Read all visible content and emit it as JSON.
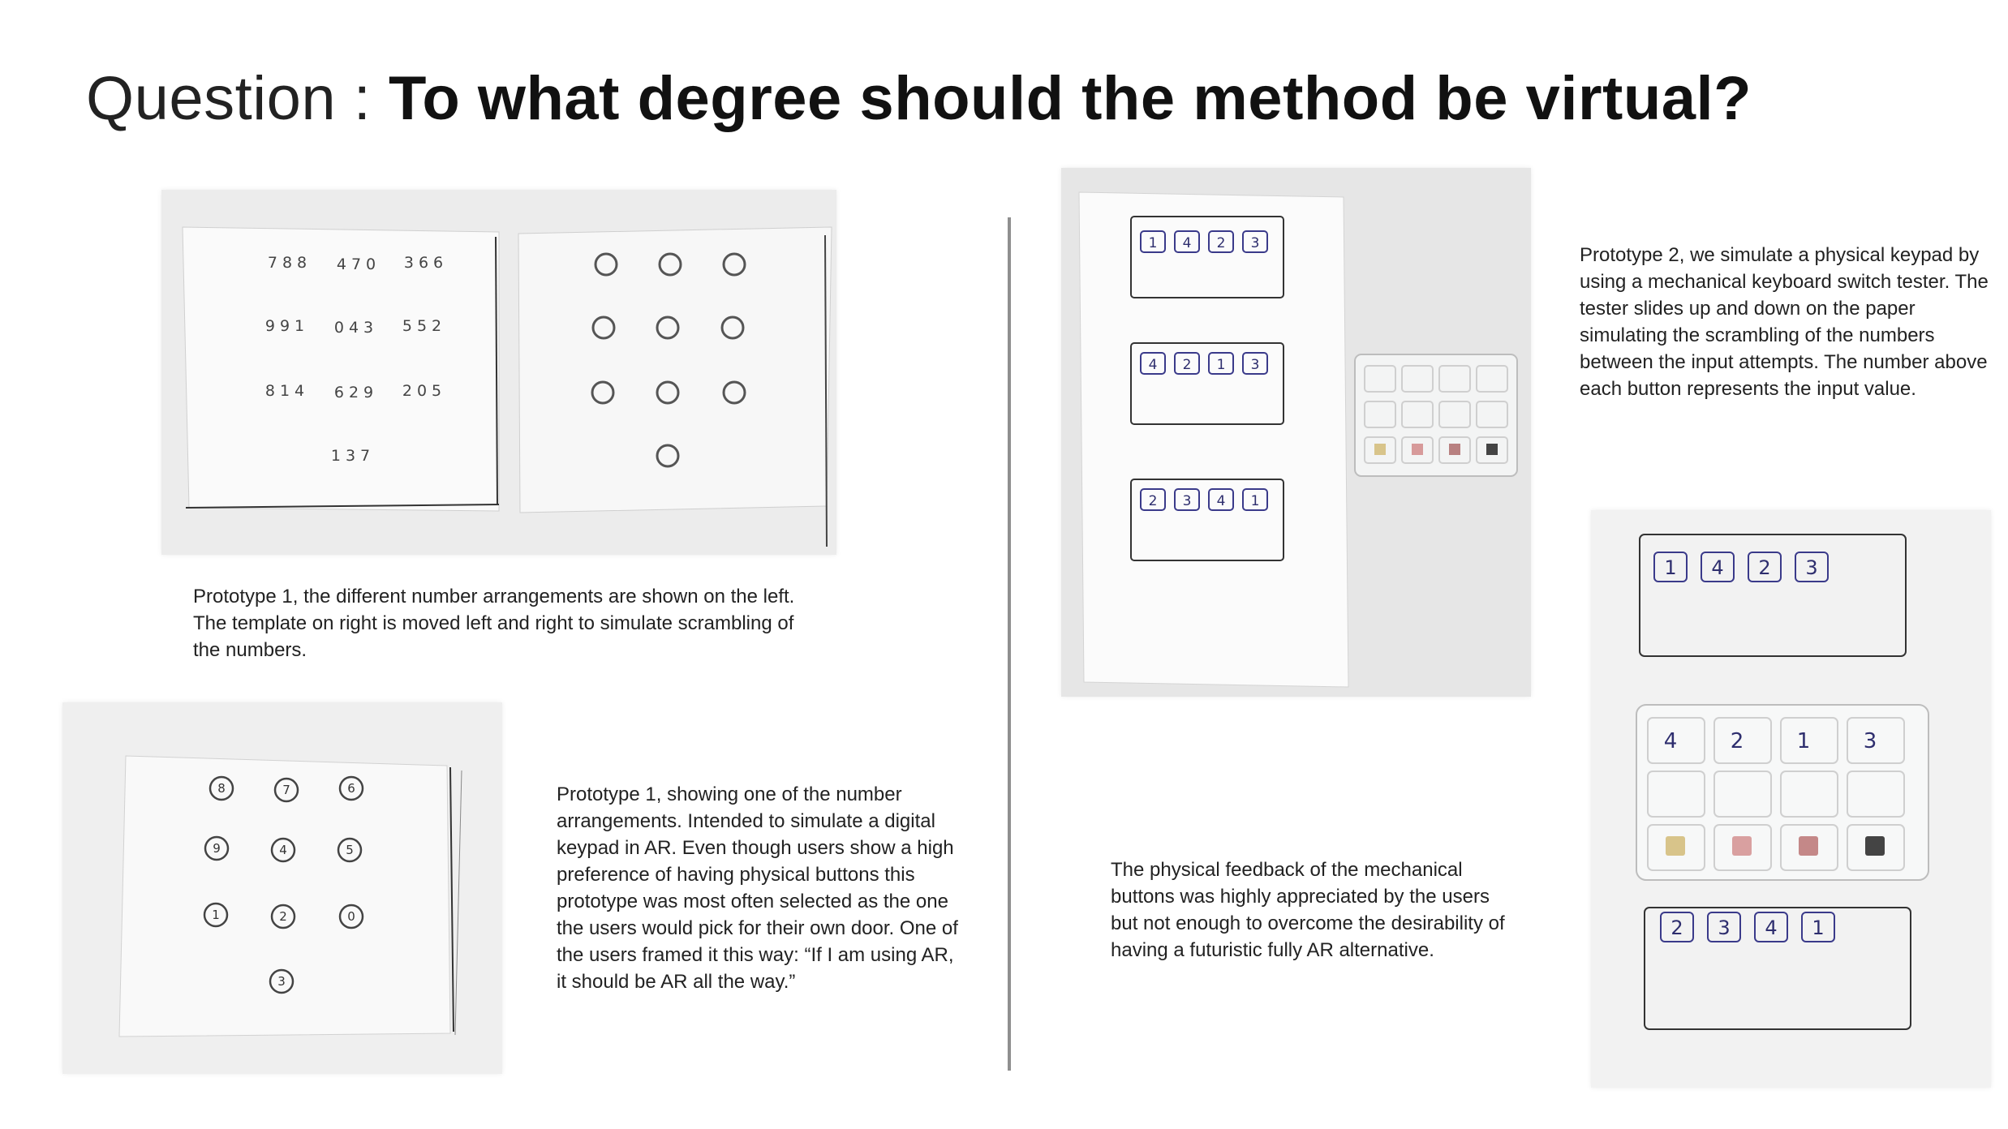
{
  "slide": {
    "title_lead": "Question : ",
    "title_question": "To what degree should the method be virtual?"
  },
  "photo1": {
    "numbers": [
      [
        "788",
        "470",
        "366"
      ],
      [
        "991",
        "043",
        "552"
      ],
      [
        "814",
        "629",
        "205"
      ],
      [
        "137"
      ]
    ]
  },
  "photo2": {
    "buttons": [
      [
        "8",
        "7",
        "6"
      ],
      [
        "9",
        "4",
        "5"
      ],
      [
        "1",
        "2",
        "0"
      ],
      [
        "3"
      ]
    ]
  },
  "photo3": {
    "rows": [
      [
        "1",
        "4",
        "2",
        "3"
      ],
      [
        "4",
        "2",
        "1",
        "3"
      ],
      [
        "2",
        "3",
        "4",
        "1"
      ]
    ]
  },
  "photo4": {
    "rows": [
      [
        "1",
        "4",
        "2",
        "3"
      ],
      [
        "4",
        "2",
        "1",
        "3"
      ],
      [
        "2",
        "3",
        "4",
        "1"
      ]
    ]
  },
  "captions": {
    "prototype1_template": "Prototype 1, the different number arrangements are shown on the left. The template on right is moved left and right to simulate scrambling of the numbers.",
    "prototype1_ar": "Prototype 1, showing one of the number arrangements. Intended to simulate a digital keypad in AR. Even though users show a high preference of having physical buttons this prototype was most often selected as the one the users would pick for their own door. One of the users framed it this way: “If I am using AR, it should be AR all the way.”",
    "prototype2": "Prototype 2, we simulate a physical keypad by using a mechanical keyboard switch tester. The tester slides up and down on the paper simulating the scrambling of the numbers between the input attempts. The number above each button represents the input value.",
    "feedback": "The physical feedback of the mechanical buttons was highly appreciated by the users but not enough to overcome the desirability of having a futuristic fully AR alternative."
  }
}
